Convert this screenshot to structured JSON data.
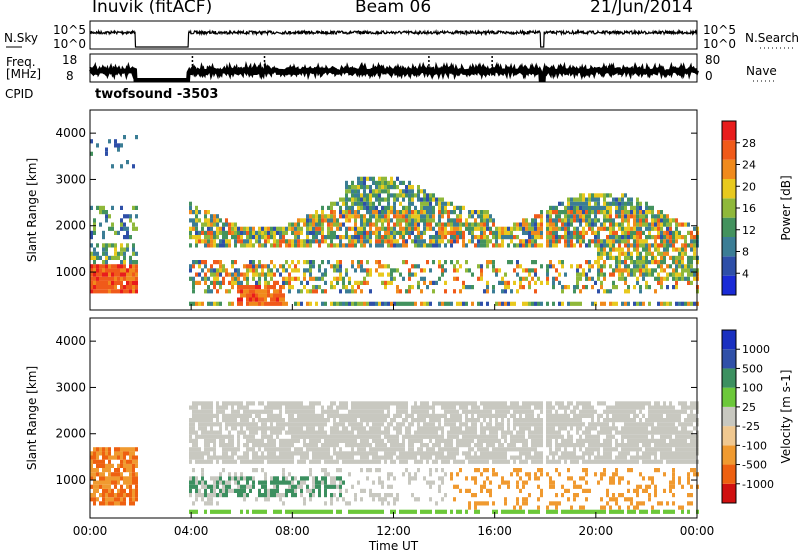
{
  "header": {
    "station": "Inuvik (fitACF)",
    "beam": "Beam 06",
    "date": "21/Jun/2014"
  },
  "left_labels": {
    "nsky": "N.Sky",
    "freq_line1": "Freq.",
    "freq_line2": "[MHz]",
    "cpid": "CPID"
  },
  "right_labels": {
    "nsearch": "N.Search",
    "nave": "Nave"
  },
  "cpid_value": "twofsound -3503",
  "noise_panel": {
    "ticks_left": [
      "10^5",
      "10^0"
    ],
    "ticks_right": [
      "10^5",
      "10^0"
    ]
  },
  "freq_panel": {
    "ticks_left": [
      "18",
      "8"
    ],
    "ticks_right": [
      "80",
      "0"
    ]
  },
  "colors": {
    "power": [
      "#1a2bd6",
      "#2e4fa8",
      "#3b7d95",
      "#43925e",
      "#8fb83a",
      "#e8c91e",
      "#f08a1c",
      "#f05a1a",
      "#e81c1c"
    ],
    "velocity": [
      "#d01010",
      "#ee6010",
      "#f09a30",
      "#f0c890",
      "#c8c8c0",
      "#6cc83a",
      "#3c9060",
      "#3050a8",
      "#1a30c0"
    ]
  },
  "chart_data": [
    {
      "type": "heatmap",
      "name": "power",
      "ylabel": "Slant Range [km]",
      "colorbar_label": "Power [dB]",
      "colorbar_ticks": [
        "28",
        "24",
        "20",
        "16",
        "12",
        "8",
        "4"
      ],
      "y_ticks": [
        "4000",
        "3000",
        "2000",
        "1000"
      ],
      "ylim": [
        180,
        4500
      ]
    },
    {
      "type": "heatmap",
      "name": "velocity",
      "ylabel": "Slant Range [km]",
      "colorbar_label": "Velocity [m s-1]",
      "colorbar_ticks": [
        "1000",
        "500",
        "100",
        "25",
        "-25",
        "-100",
        "-500",
        "-1000"
      ],
      "y_ticks": [
        "4000",
        "3000",
        "2000",
        "1000"
      ],
      "ylim": [
        180,
        4500
      ]
    }
  ],
  "x_axis": {
    "ticks": [
      "00:00",
      "04:00",
      "08:00",
      "12:00",
      "16:00",
      "20:00",
      "00:00"
    ],
    "label": "Time UT",
    "xlim_hours": [
      0,
      24
    ]
  }
}
